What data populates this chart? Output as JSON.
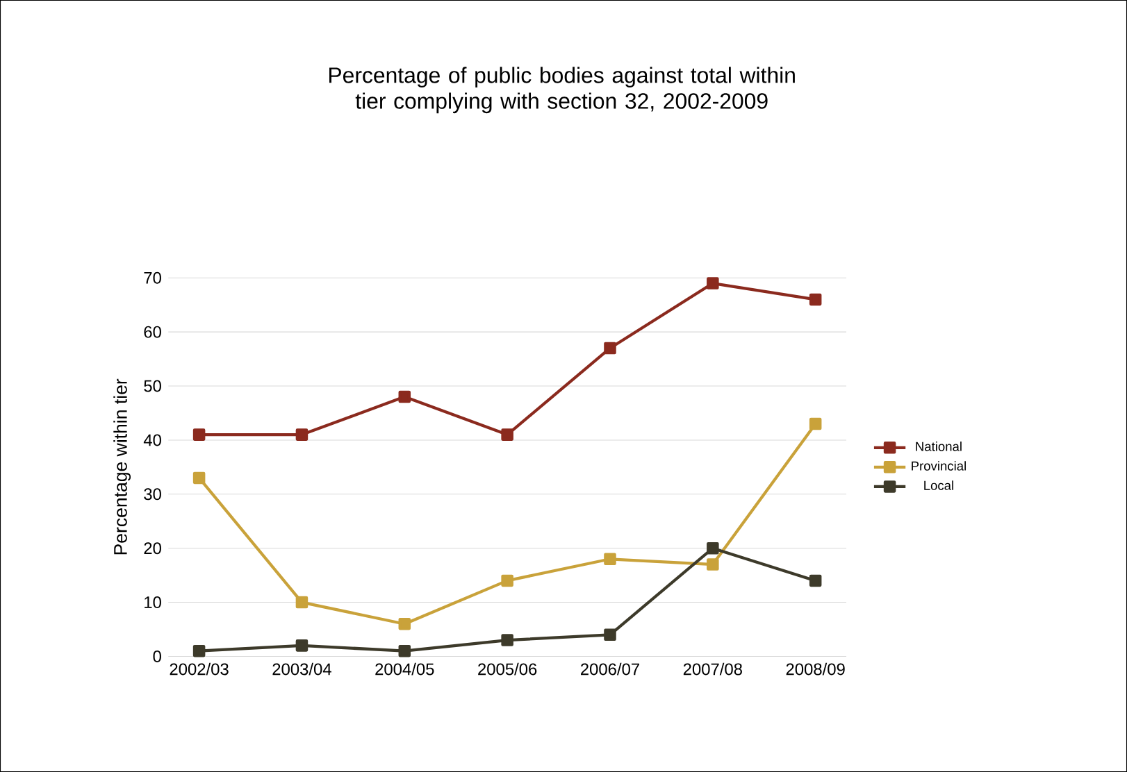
{
  "chart_data": {
    "type": "line",
    "title": "Percentage  of public bodies against total within tier complying with section 32, 2002-2009",
    "ylabel": "Percentage within tier",
    "categories": [
      "2002/03",
      "2003/04",
      "2004/05",
      "2005/06",
      "2006/07",
      "2007/08",
      "2008/09"
    ],
    "series": [
      {
        "name": "National",
        "color": "#8b2a1e",
        "values": [
          41,
          41,
          48,
          41,
          57,
          69,
          66
        ]
      },
      {
        "name": "Provincial",
        "color": "#c9a23a",
        "values": [
          33,
          10,
          6,
          14,
          18,
          17,
          43
        ]
      },
      {
        "name": "Local",
        "color": "#3d3a2a",
        "values": [
          1,
          2,
          1,
          3,
          4,
          20,
          14
        ]
      }
    ],
    "ylim": [
      0,
      70
    ],
    "yticks": [
      0,
      10,
      20,
      30,
      40,
      50,
      60,
      70
    ],
    "grid": "y",
    "legend": "right",
    "marker": "square"
  }
}
